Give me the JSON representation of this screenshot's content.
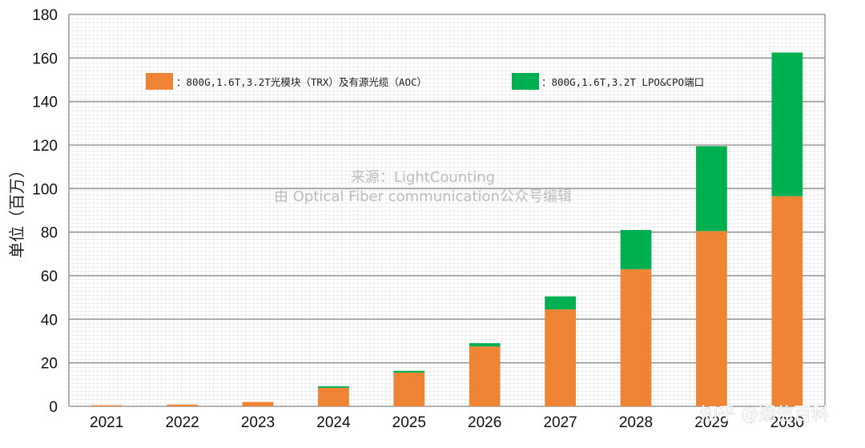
{
  "chart_data": {
    "type": "bar",
    "stacked": true,
    "categories": [
      "2021",
      "2022",
      "2023",
      "2024",
      "2025",
      "2026",
      "2027",
      "2028",
      "2029",
      "2030"
    ],
    "series": [
      {
        "name": "：800G,1.6T,3.2T光模块（TRX）及有源光缆（AOC）",
        "color": "#ee8434",
        "values": [
          0.5,
          0.8,
          2,
          8.5,
          15.5,
          27.5,
          44.5,
          63,
          80.5,
          96.5
        ]
      },
      {
        "name": "：800G,1.6T,3.2T LPO&CPO端口",
        "color": "#00b050",
        "values": [
          0,
          0,
          0,
          0.7,
          0.8,
          1.5,
          6,
          18,
          39,
          66
        ]
      }
    ],
    "ylabel": "单位（百万）",
    "xlabel": "",
    "ylim": [
      0,
      180
    ],
    "yticks": [
      "0",
      "20",
      "40",
      "60",
      "80",
      "100",
      "120",
      "140",
      "160",
      "180"
    ],
    "grid": true,
    "legend_position": "top"
  },
  "annotations": {
    "source": "来源：LightCounting",
    "editor": "由 Optical Fiber communication公众号编辑",
    "brand": "知乎 @通信百科"
  }
}
